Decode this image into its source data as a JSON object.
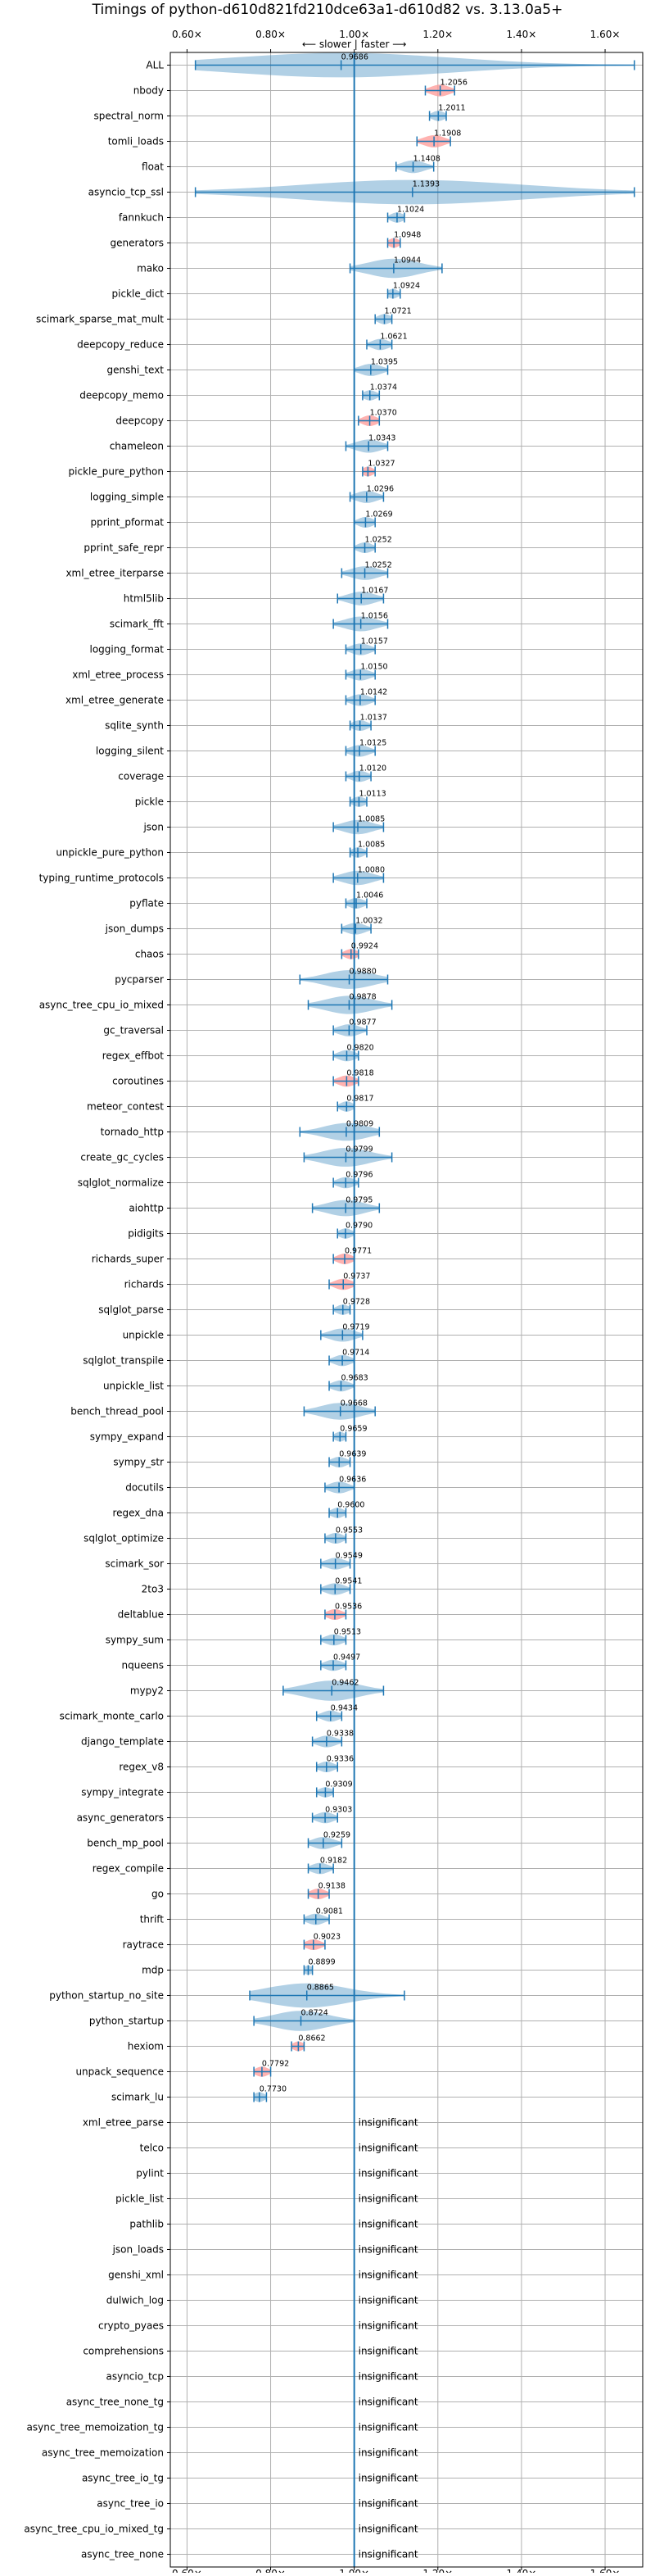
{
  "chart_data": {
    "type": "violin",
    "title": "Timings of python-d610d821fd210dce63a1-d610d82 vs. 3.13.0a5+",
    "direction_label": "⟵ slower | faster ⟶",
    "xlim": [
      0.56,
      1.69
    ],
    "xticks": [
      {
        "v": 0.6,
        "label": "0.60×"
      },
      {
        "v": 0.8,
        "label": "0.80×"
      },
      {
        "v": 1.0,
        "label": "1.00×"
      },
      {
        "v": 1.2,
        "label": "1.20×"
      },
      {
        "v": 1.4,
        "label": "1.40×"
      },
      {
        "v": 1.6,
        "label": "1.60×"
      }
    ],
    "grid": true,
    "colors": {
      "violin": "#1f77b4",
      "highlight": "#ff9896",
      "axis": "#000000",
      "grid": "#b0b0b0"
    },
    "insignificant_label": "insignificant",
    "benchmarks": [
      {
        "name": "ALL",
        "value": 0.9686,
        "min": 0.62,
        "max": 1.67,
        "sig": true,
        "hl": false
      },
      {
        "name": "nbody",
        "value": 1.2056,
        "min": 1.17,
        "max": 1.24,
        "sig": true,
        "hl": true
      },
      {
        "name": "spectral_norm",
        "value": 1.2011,
        "min": 1.18,
        "max": 1.22,
        "sig": true,
        "hl": false
      },
      {
        "name": "tomli_loads",
        "value": 1.1908,
        "min": 1.15,
        "max": 1.23,
        "sig": true,
        "hl": true
      },
      {
        "name": "float",
        "value": 1.1408,
        "min": 1.1,
        "max": 1.19,
        "sig": true,
        "hl": false
      },
      {
        "name": "asyncio_tcp_ssl",
        "value": 1.1393,
        "min": 0.62,
        "max": 1.67,
        "sig": true,
        "hl": false
      },
      {
        "name": "fannkuch",
        "value": 1.1024,
        "min": 1.08,
        "max": 1.12,
        "sig": true,
        "hl": false
      },
      {
        "name": "generators",
        "value": 1.0948,
        "min": 1.08,
        "max": 1.11,
        "sig": true,
        "hl": true
      },
      {
        "name": "mako",
        "value": 1.0944,
        "min": 0.99,
        "max": 1.21,
        "sig": true,
        "hl": false
      },
      {
        "name": "pickle_dict",
        "value": 1.0924,
        "min": 1.08,
        "max": 1.11,
        "sig": true,
        "hl": false
      },
      {
        "name": "scimark_sparse_mat_mult",
        "value": 1.0721,
        "min": 1.05,
        "max": 1.09,
        "sig": true,
        "hl": false
      },
      {
        "name": "deepcopy_reduce",
        "value": 1.0621,
        "min": 1.03,
        "max": 1.09,
        "sig": true,
        "hl": false
      },
      {
        "name": "genshi_text",
        "value": 1.0395,
        "min": 1.0,
        "max": 1.08,
        "sig": true,
        "hl": false
      },
      {
        "name": "deepcopy_memo",
        "value": 1.0374,
        "min": 1.02,
        "max": 1.06,
        "sig": true,
        "hl": false
      },
      {
        "name": "deepcopy",
        "value": 1.037,
        "min": 1.01,
        "max": 1.06,
        "sig": true,
        "hl": true
      },
      {
        "name": "chameleon",
        "value": 1.0343,
        "min": 0.98,
        "max": 1.08,
        "sig": true,
        "hl": false
      },
      {
        "name": "pickle_pure_python",
        "value": 1.0327,
        "min": 1.02,
        "max": 1.05,
        "sig": true,
        "hl": true
      },
      {
        "name": "logging_simple",
        "value": 1.0296,
        "min": 0.99,
        "max": 1.07,
        "sig": true,
        "hl": false
      },
      {
        "name": "pprint_pformat",
        "value": 1.0269,
        "min": 1.0,
        "max": 1.05,
        "sig": true,
        "hl": false
      },
      {
        "name": "pprint_safe_repr",
        "value": 1.0252,
        "min": 1.0,
        "max": 1.05,
        "sig": true,
        "hl": false
      },
      {
        "name": "xml_etree_iterparse",
        "value": 1.0252,
        "min": 0.97,
        "max": 1.08,
        "sig": true,
        "hl": false
      },
      {
        "name": "html5lib",
        "value": 1.0167,
        "min": 0.96,
        "max": 1.07,
        "sig": true,
        "hl": false
      },
      {
        "name": "scimark_fft",
        "value": 1.0156,
        "min": 0.95,
        "max": 1.08,
        "sig": true,
        "hl": false
      },
      {
        "name": "logging_format",
        "value": 1.0157,
        "min": 0.98,
        "max": 1.05,
        "sig": true,
        "hl": false
      },
      {
        "name": "xml_etree_process",
        "value": 1.015,
        "min": 0.98,
        "max": 1.05,
        "sig": true,
        "hl": false
      },
      {
        "name": "xml_etree_generate",
        "value": 1.0142,
        "min": 0.98,
        "max": 1.05,
        "sig": true,
        "hl": false
      },
      {
        "name": "sqlite_synth",
        "value": 1.0137,
        "min": 0.99,
        "max": 1.04,
        "sig": true,
        "hl": false
      },
      {
        "name": "logging_silent",
        "value": 1.0125,
        "min": 0.98,
        "max": 1.05,
        "sig": true,
        "hl": false
      },
      {
        "name": "coverage",
        "value": 1.012,
        "min": 0.98,
        "max": 1.04,
        "sig": true,
        "hl": false
      },
      {
        "name": "pickle",
        "value": 1.0113,
        "min": 0.99,
        "max": 1.03,
        "sig": true,
        "hl": false
      },
      {
        "name": "json",
        "value": 1.0085,
        "min": 0.95,
        "max": 1.07,
        "sig": true,
        "hl": false
      },
      {
        "name": "unpickle_pure_python",
        "value": 1.0085,
        "min": 0.99,
        "max": 1.03,
        "sig": true,
        "hl": false
      },
      {
        "name": "typing_runtime_protocols",
        "value": 1.008,
        "min": 0.95,
        "max": 1.07,
        "sig": true,
        "hl": false
      },
      {
        "name": "pyflate",
        "value": 1.0046,
        "min": 0.98,
        "max": 1.03,
        "sig": true,
        "hl": false
      },
      {
        "name": "json_dumps",
        "value": 1.0032,
        "min": 0.97,
        "max": 1.04,
        "sig": true,
        "hl": false
      },
      {
        "name": "chaos",
        "value": 0.9924,
        "min": 0.97,
        "max": 1.01,
        "sig": true,
        "hl": true
      },
      {
        "name": "pycparser",
        "value": 0.988,
        "min": 0.87,
        "max": 1.08,
        "sig": true,
        "hl": false
      },
      {
        "name": "async_tree_cpu_io_mixed",
        "value": 0.9878,
        "min": 0.89,
        "max": 1.09,
        "sig": true,
        "hl": false
      },
      {
        "name": "gc_traversal",
        "value": 0.9877,
        "min": 0.95,
        "max": 1.03,
        "sig": true,
        "hl": false
      },
      {
        "name": "regex_effbot",
        "value": 0.982,
        "min": 0.95,
        "max": 1.01,
        "sig": true,
        "hl": false
      },
      {
        "name": "coroutines",
        "value": 0.9818,
        "min": 0.95,
        "max": 1.01,
        "sig": true,
        "hl": true
      },
      {
        "name": "meteor_contest",
        "value": 0.9817,
        "min": 0.96,
        "max": 1.0,
        "sig": true,
        "hl": false
      },
      {
        "name": "tornado_http",
        "value": 0.9809,
        "min": 0.87,
        "max": 1.06,
        "sig": true,
        "hl": false
      },
      {
        "name": "create_gc_cycles",
        "value": 0.9799,
        "min": 0.88,
        "max": 1.09,
        "sig": true,
        "hl": false
      },
      {
        "name": "sqlglot_normalize",
        "value": 0.9796,
        "min": 0.95,
        "max": 1.01,
        "sig": true,
        "hl": false
      },
      {
        "name": "aiohttp",
        "value": 0.9795,
        "min": 0.9,
        "max": 1.06,
        "sig": true,
        "hl": false
      },
      {
        "name": "pidigits",
        "value": 0.979,
        "min": 0.96,
        "max": 1.0,
        "sig": true,
        "hl": false
      },
      {
        "name": "richards_super",
        "value": 0.9771,
        "min": 0.95,
        "max": 1.0,
        "sig": true,
        "hl": true
      },
      {
        "name": "richards",
        "value": 0.9737,
        "min": 0.94,
        "max": 1.0,
        "sig": true,
        "hl": true
      },
      {
        "name": "sqlglot_parse",
        "value": 0.9728,
        "min": 0.95,
        "max": 0.99,
        "sig": true,
        "hl": false
      },
      {
        "name": "unpickle",
        "value": 0.9719,
        "min": 0.92,
        "max": 1.02,
        "sig": true,
        "hl": false
      },
      {
        "name": "sqlglot_transpile",
        "value": 0.9714,
        "min": 0.94,
        "max": 1.0,
        "sig": true,
        "hl": false
      },
      {
        "name": "unpickle_list",
        "value": 0.9683,
        "min": 0.94,
        "max": 1.0,
        "sig": true,
        "hl": false
      },
      {
        "name": "bench_thread_pool",
        "value": 0.9668,
        "min": 0.88,
        "max": 1.05,
        "sig": true,
        "hl": false
      },
      {
        "name": "sympy_expand",
        "value": 0.9659,
        "min": 0.95,
        "max": 0.98,
        "sig": true,
        "hl": false
      },
      {
        "name": "sympy_str",
        "value": 0.9639,
        "min": 0.94,
        "max": 0.99,
        "sig": true,
        "hl": false
      },
      {
        "name": "docutils",
        "value": 0.9636,
        "min": 0.93,
        "max": 1.0,
        "sig": true,
        "hl": false
      },
      {
        "name": "regex_dna",
        "value": 0.96,
        "min": 0.94,
        "max": 0.98,
        "sig": true,
        "hl": false
      },
      {
        "name": "sqlglot_optimize",
        "value": 0.9553,
        "min": 0.93,
        "max": 0.98,
        "sig": true,
        "hl": false
      },
      {
        "name": "scimark_sor",
        "value": 0.9549,
        "min": 0.92,
        "max": 0.99,
        "sig": true,
        "hl": false
      },
      {
        "name": "2to3",
        "value": 0.9541,
        "min": 0.92,
        "max": 0.99,
        "sig": true,
        "hl": false
      },
      {
        "name": "deltablue",
        "value": 0.9536,
        "min": 0.93,
        "max": 0.98,
        "sig": true,
        "hl": true
      },
      {
        "name": "sympy_sum",
        "value": 0.9513,
        "min": 0.92,
        "max": 0.98,
        "sig": true,
        "hl": false
      },
      {
        "name": "nqueens",
        "value": 0.9497,
        "min": 0.92,
        "max": 0.98,
        "sig": true,
        "hl": false
      },
      {
        "name": "mypy2",
        "value": 0.9462,
        "min": 0.83,
        "max": 1.07,
        "sig": true,
        "hl": false
      },
      {
        "name": "scimark_monte_carlo",
        "value": 0.9434,
        "min": 0.91,
        "max": 0.97,
        "sig": true,
        "hl": false
      },
      {
        "name": "django_template",
        "value": 0.9338,
        "min": 0.9,
        "max": 0.97,
        "sig": true,
        "hl": false
      },
      {
        "name": "regex_v8",
        "value": 0.9336,
        "min": 0.91,
        "max": 0.96,
        "sig": true,
        "hl": false
      },
      {
        "name": "sympy_integrate",
        "value": 0.9309,
        "min": 0.91,
        "max": 0.95,
        "sig": true,
        "hl": false
      },
      {
        "name": "async_generators",
        "value": 0.9303,
        "min": 0.9,
        "max": 0.96,
        "sig": true,
        "hl": false
      },
      {
        "name": "bench_mp_pool",
        "value": 0.9259,
        "min": 0.89,
        "max": 0.97,
        "sig": true,
        "hl": false
      },
      {
        "name": "regex_compile",
        "value": 0.9182,
        "min": 0.89,
        "max": 0.95,
        "sig": true,
        "hl": false
      },
      {
        "name": "go",
        "value": 0.9138,
        "min": 0.89,
        "max": 0.94,
        "sig": true,
        "hl": true
      },
      {
        "name": "thrift",
        "value": 0.9081,
        "min": 0.88,
        "max": 0.94,
        "sig": true,
        "hl": false
      },
      {
        "name": "raytrace",
        "value": 0.9023,
        "min": 0.88,
        "max": 0.93,
        "sig": true,
        "hl": true
      },
      {
        "name": "mdp",
        "value": 0.8899,
        "min": 0.88,
        "max": 0.9,
        "sig": true,
        "hl": false
      },
      {
        "name": "python_startup_no_site",
        "value": 0.8865,
        "min": 0.75,
        "max": 1.12,
        "sig": true,
        "hl": false
      },
      {
        "name": "python_startup",
        "value": 0.8724,
        "min": 0.76,
        "max": 1.0,
        "sig": true,
        "hl": false
      },
      {
        "name": "hexiom",
        "value": 0.8662,
        "min": 0.85,
        "max": 0.88,
        "sig": true,
        "hl": true
      },
      {
        "name": "unpack_sequence",
        "value": 0.7792,
        "min": 0.76,
        "max": 0.8,
        "sig": true,
        "hl": true
      },
      {
        "name": "scimark_lu",
        "value": 0.773,
        "min": 0.76,
        "max": 0.79,
        "sig": true,
        "hl": false
      },
      {
        "name": "xml_etree_parse",
        "sig": false
      },
      {
        "name": "telco",
        "sig": false
      },
      {
        "name": "pylint",
        "sig": false
      },
      {
        "name": "pickle_list",
        "sig": false
      },
      {
        "name": "pathlib",
        "sig": false
      },
      {
        "name": "json_loads",
        "sig": false
      },
      {
        "name": "genshi_xml",
        "sig": false
      },
      {
        "name": "dulwich_log",
        "sig": false
      },
      {
        "name": "crypto_pyaes",
        "sig": false
      },
      {
        "name": "comprehensions",
        "sig": false
      },
      {
        "name": "asyncio_tcp",
        "sig": false
      },
      {
        "name": "async_tree_none_tg",
        "sig": false
      },
      {
        "name": "async_tree_memoization_tg",
        "sig": false
      },
      {
        "name": "async_tree_memoization",
        "sig": false
      },
      {
        "name": "async_tree_io_tg",
        "sig": false
      },
      {
        "name": "async_tree_io",
        "sig": false
      },
      {
        "name": "async_tree_cpu_io_mixed_tg",
        "sig": false
      },
      {
        "name": "async_tree_none",
        "sig": false
      }
    ]
  }
}
